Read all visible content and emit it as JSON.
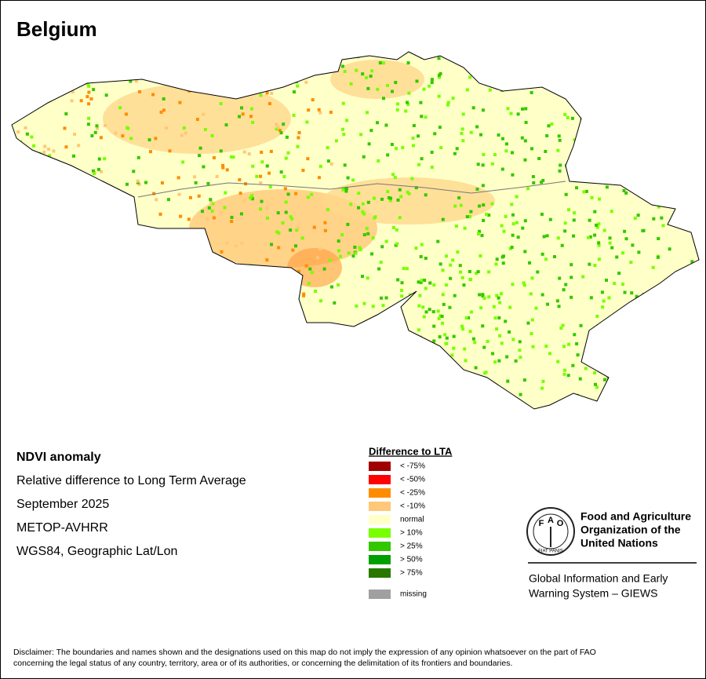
{
  "title": "Belgium",
  "info": [
    "NDVI anomaly",
    "Relative difference to Long Term Average",
    "September 2025",
    "METOP-AVHRR",
    "WGS84, Geographic Lat/Lon"
  ],
  "legend": {
    "title": "Difference to LTA",
    "items": [
      {
        "label": "< -75%",
        "color": "#a00000"
      },
      {
        "label": "< -50%",
        "color": "#ff0000"
      },
      {
        "label": "< -25%",
        "color": "#ff8c00"
      },
      {
        "label": "< -10%",
        "color": "#ffc878"
      },
      {
        "label": "normal",
        "color": "#ffffc8"
      },
      {
        "label": "> 10%",
        "color": "#78ff00"
      },
      {
        "label": "> 25%",
        "color": "#32c800"
      },
      {
        "label": "> 50%",
        "color": "#00a000"
      },
      {
        "label": "> 75%",
        "color": "#287800"
      }
    ],
    "missing": {
      "label": "missing",
      "color": "#a0a0a0"
    }
  },
  "logo": {
    "emblem_letters": [
      "F",
      "A",
      "O"
    ],
    "motto": "FIAT PANIS",
    "org": [
      "Food and Agriculture",
      "Organization of the",
      "United Nations"
    ],
    "system": [
      "Global Information and Early",
      "Warning System – GIEWS"
    ]
  },
  "disclaimer": [
    "Disclaimer: The boundaries and names shown and the designations used on this map do not imply the expression of any opinion whatsoever on the part of FAO",
    "concerning the legal status of any country, territory, area or of its authorities, or concerning the delimitation of its frontiers and boundaries."
  ]
}
